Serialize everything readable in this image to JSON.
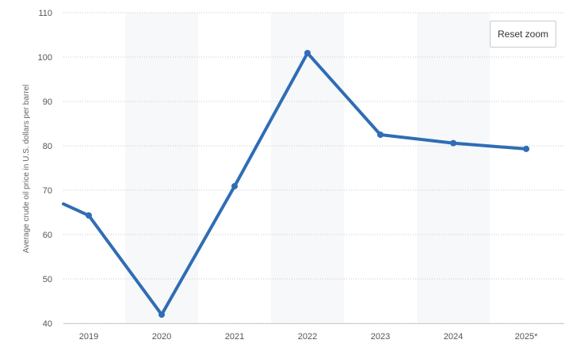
{
  "chart_data": {
    "type": "line",
    "title": "",
    "xlabel": "",
    "ylabel": "Average crude oil price in U.S. dollars per barrel",
    "categories": [
      "2019",
      "2020",
      "2021",
      "2022",
      "2023",
      "2024",
      "2025*"
    ],
    "values": [
      64.3,
      41.96,
      70.9,
      100.9,
      82.5,
      80.6,
      79.3
    ],
    "leading_value": 66.9,
    "ylim": [
      40,
      110
    ],
    "yticks": [
      40,
      50,
      60,
      70,
      80,
      90,
      100,
      110
    ],
    "grid": true,
    "line_color": "#2f6db5",
    "band_color": "#f7f8fa"
  },
  "controls": {
    "reset_zoom_label": "Reset zoom"
  }
}
